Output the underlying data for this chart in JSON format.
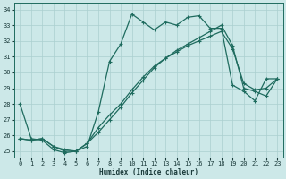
{
  "xlabel": "Humidex (Indice chaleur)",
  "background_color": "#cce8e8",
  "grid_color": "#aacfcf",
  "line_color": "#1e6b5e",
  "xlim": [
    -0.5,
    23.5
  ],
  "ylim": [
    24.6,
    34.4
  ],
  "xticks": [
    0,
    1,
    2,
    3,
    4,
    5,
    6,
    7,
    8,
    9,
    10,
    11,
    12,
    13,
    14,
    15,
    16,
    17,
    18,
    19,
    20,
    21,
    22,
    23
  ],
  "yticks": [
    25,
    26,
    27,
    28,
    29,
    30,
    31,
    32,
    33,
    34
  ],
  "line1_x": [
    0,
    1,
    2,
    3,
    4,
    5,
    6,
    7,
    8,
    9,
    10,
    11,
    12,
    13,
    14,
    15,
    16,
    17,
    18,
    19,
    20,
    21,
    22,
    23
  ],
  "line1_y": [
    28.0,
    25.8,
    25.7,
    25.1,
    24.9,
    25.0,
    25.3,
    27.5,
    30.7,
    31.8,
    33.7,
    33.2,
    32.7,
    33.2,
    33.0,
    33.5,
    33.6,
    32.8,
    32.8,
    29.2,
    28.8,
    28.2,
    29.6,
    29.6
  ],
  "line2_x": [
    0,
    1,
    2,
    3,
    4,
    5,
    6,
    7,
    8,
    9,
    10,
    11,
    12,
    13,
    14,
    15,
    16,
    17,
    18,
    19,
    20,
    21,
    22,
    23
  ],
  "line2_y": [
    25.8,
    25.7,
    25.8,
    25.3,
    25.0,
    25.0,
    25.5,
    26.2,
    27.0,
    27.8,
    28.7,
    29.5,
    30.3,
    30.9,
    31.4,
    31.8,
    32.2,
    32.6,
    33.0,
    31.7,
    29.0,
    28.8,
    28.5,
    29.6
  ],
  "line3_x": [
    0,
    1,
    2,
    3,
    4,
    5,
    6,
    7,
    8,
    9,
    10,
    11,
    12,
    13,
    14,
    15,
    16,
    17,
    18,
    19,
    20,
    21,
    22,
    23
  ],
  "line3_y": [
    25.8,
    25.7,
    25.8,
    25.3,
    25.1,
    25.0,
    25.5,
    26.5,
    27.3,
    28.0,
    28.9,
    29.7,
    30.4,
    30.9,
    31.3,
    31.7,
    32.0,
    32.3,
    32.6,
    31.5,
    29.3,
    28.9,
    29.0,
    29.6
  ]
}
